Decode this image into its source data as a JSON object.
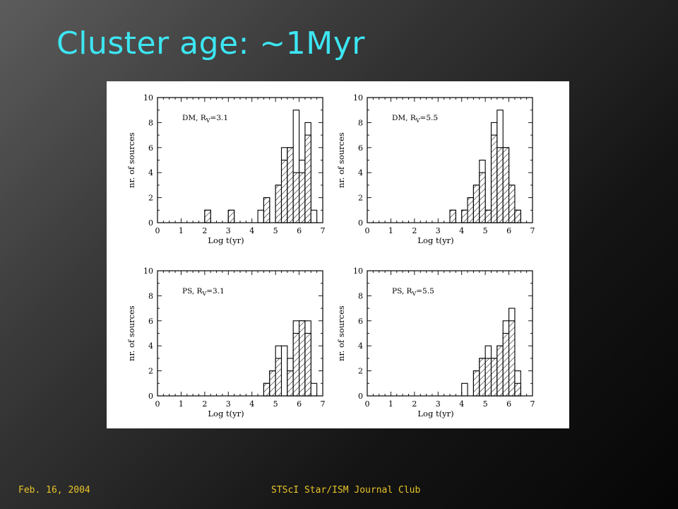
{
  "slide": {
    "title": "Cluster age: ~1Myr",
    "footer_left": "Feb. 16, 2004",
    "footer_center": "STScI Star/ISM Journal Club"
  },
  "chart_data": [
    {
      "type": "bar",
      "panel_label": "DM, R_V=3.1",
      "panel_prefix": "DM,  R",
      "panel_sub": "V",
      "panel_value": "=3.1",
      "xlabel": "Log t(yr)",
      "ylabel": "nr. of sources",
      "xlim": [
        0,
        7
      ],
      "ylim": [
        0,
        10
      ],
      "xticks": [
        "0",
        "1",
        "2",
        "3",
        "4",
        "5",
        "6",
        "7"
      ],
      "yticks": [
        "0",
        "2",
        "4",
        "6",
        "8",
        "10"
      ],
      "bin_width": 0.25,
      "bin_starts": [
        2.0,
        3.0,
        4.25,
        4.5,
        4.75,
        5.0,
        5.25,
        5.5,
        5.75,
        6.0,
        6.25,
        6.5
      ],
      "series": [
        {
          "name": "total",
          "values": [
            1,
            1,
            1,
            2,
            0,
            3,
            6,
            6,
            9,
            5,
            8,
            1
          ]
        },
        {
          "name": "hatched",
          "values": [
            1,
            1,
            0,
            2,
            0,
            3,
            5,
            6,
            4,
            4,
            7,
            0
          ]
        }
      ]
    },
    {
      "type": "bar",
      "panel_label": "DM, R_V=5.5",
      "panel_prefix": "DM,  R",
      "panel_sub": "V",
      "panel_value": "=5.5",
      "xlabel": "Log t(yr)",
      "ylabel": "nr. of sources",
      "xlim": [
        0,
        7
      ],
      "ylim": [
        0,
        10
      ],
      "xticks": [
        "0",
        "1",
        "2",
        "3",
        "4",
        "5",
        "6",
        "7"
      ],
      "yticks": [
        "0",
        "2",
        "4",
        "6",
        "8",
        "10"
      ],
      "bin_width": 0.25,
      "bin_starts": [
        3.5,
        4.0,
        4.25,
        4.5,
        4.75,
        5.0,
        5.25,
        5.5,
        5.75,
        6.0,
        6.25
      ],
      "series": [
        {
          "name": "total",
          "values": [
            1,
            1,
            2,
            3,
            5,
            1,
            8,
            9,
            6,
            3,
            1
          ]
        },
        {
          "name": "hatched",
          "values": [
            1,
            1,
            2,
            3,
            4,
            1,
            7,
            6,
            6,
            3,
            1
          ]
        }
      ]
    },
    {
      "type": "bar",
      "panel_label": "PS, R_V=3.1",
      "panel_prefix": "PS,  R",
      "panel_sub": "V",
      "panel_value": "=3.1",
      "xlabel": "Log t(yr)",
      "ylabel": "nr. of sources",
      "xlim": [
        0,
        7
      ],
      "ylim": [
        0,
        10
      ],
      "xticks": [
        "0",
        "1",
        "2",
        "3",
        "4",
        "5",
        "6",
        "7"
      ],
      "yticks": [
        "0",
        "2",
        "4",
        "6",
        "8",
        "10"
      ],
      "bin_width": 0.25,
      "bin_starts": [
        4.5,
        4.75,
        5.0,
        5.25,
        5.5,
        5.75,
        6.0,
        6.25,
        6.5
      ],
      "series": [
        {
          "name": "total",
          "values": [
            1,
            2,
            4,
            4,
            3,
            6,
            6,
            6,
            1
          ]
        },
        {
          "name": "hatched",
          "values": [
            1,
            2,
            3,
            0,
            2,
            5,
            6,
            5,
            0
          ]
        }
      ]
    },
    {
      "type": "bar",
      "panel_label": "PS, R_V=5.5",
      "panel_prefix": "PS,  R",
      "panel_sub": "V",
      "panel_value": "=5.5",
      "xlabel": "Log t(yr)",
      "ylabel": "nr. of sources",
      "xlim": [
        0,
        7
      ],
      "ylim": [
        0,
        10
      ],
      "xticks": [
        "0",
        "1",
        "2",
        "3",
        "4",
        "5",
        "6",
        "7"
      ],
      "yticks": [
        "0",
        "2",
        "4",
        "6",
        "8",
        "10"
      ],
      "bin_width": 0.25,
      "bin_starts": [
        4.0,
        4.5,
        4.75,
        5.0,
        5.25,
        5.5,
        5.75,
        6.0,
        6.25
      ],
      "series": [
        {
          "name": "total",
          "values": [
            1,
            2,
            3,
            4,
            3,
            4,
            6,
            7,
            2
          ]
        },
        {
          "name": "hatched",
          "values": [
            0,
            2,
            3,
            3,
            3,
            4,
            5,
            6,
            1
          ]
        }
      ]
    }
  ]
}
